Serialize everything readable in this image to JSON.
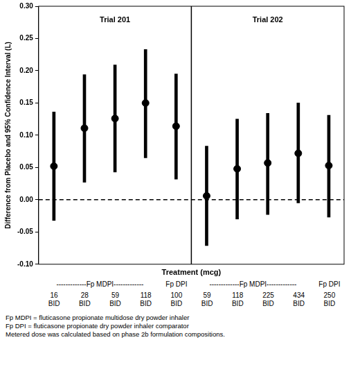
{
  "chart_data": {
    "type": "scatter",
    "x_label": "Treatment (mcg)",
    "y_label": "Difference from Placebo and 95% Confidence Interval (L)",
    "ylim": [
      -0.1,
      0.3
    ],
    "yticks": [
      {
        "value": -0.1,
        "label": "-0.10"
      },
      {
        "value": -0.05,
        "label": "-0.05"
      },
      {
        "value": 0,
        "label": "0.00"
      },
      {
        "value": 0.05,
        "label": "0.05"
      },
      {
        "value": 0.1,
        "label": "0.10"
      },
      {
        "value": 0.15,
        "label": "0.15"
      },
      {
        "value": 0.2,
        "label": "0.20"
      },
      {
        "value": 0.25,
        "label": "0.25"
      },
      {
        "value": 0.3,
        "label": "0.30"
      }
    ],
    "grid": false,
    "tick_labels": "y",
    "color": "#000000",
    "marker": "circle",
    "reference_line": 0,
    "panels": [
      {
        "title": "Trial 201",
        "groups": [
          {
            "label": "-------------Fp MDPI-------------",
            "categories": [
              "16 BID",
              "28 BID",
              "59 BID",
              "118 BID"
            ]
          },
          {
            "label": "Fp DPI",
            "categories": [
              "100 BID"
            ]
          }
        ],
        "values": [
          0.052,
          0.111,
          0.126,
          0.15,
          0.114
        ],
        "ci_low": [
          -0.032,
          0.027,
          0.043,
          0.065,
          0.032
        ],
        "ci_high": [
          0.136,
          0.194,
          0.209,
          0.233,
          0.195
        ]
      },
      {
        "title": "Trial 202",
        "groups": [
          {
            "label": "-------------Fp MDPI-------------",
            "categories": [
              "59 BID",
              "118 BID",
              "225 BID",
              "434 BID"
            ]
          },
          {
            "label": "Fp DPI",
            "categories": [
              "250 BID"
            ]
          }
        ],
        "values": [
          0.006,
          0.048,
          0.057,
          0.072,
          0.053
        ],
        "ci_low": [
          -0.071,
          -0.03,
          -0.023,
          -0.005,
          -0.027
        ],
        "ci_high": [
          0.083,
          0.125,
          0.134,
          0.15,
          0.131
        ]
      }
    ],
    "notes": [
      "Fp MDPI = fluticasone propionate multidose dry powder inhaler",
      "Fp DPI = fluticasone propionate dry powder inhaler comparator",
      "Metered dose was calculated based on phase 2b formulation compositions."
    ]
  }
}
